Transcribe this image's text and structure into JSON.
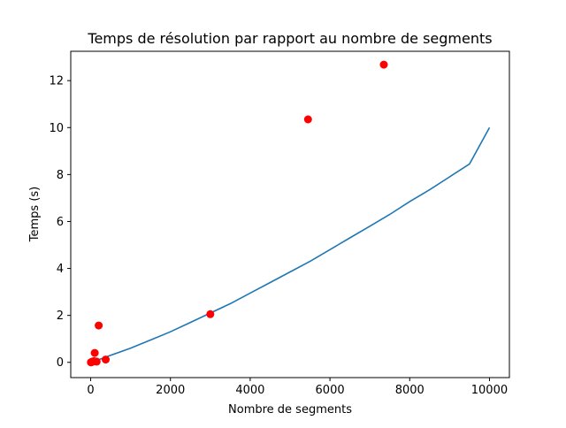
{
  "chart_data": {
    "type": "scatter",
    "title": "Temps de résolution par rapport au nombre de segments",
    "xlabel": "Nombre de segments",
    "ylabel": "Temps (s)",
    "xlim": [
      -500,
      10500
    ],
    "ylim": [
      -0.65,
      13.25
    ],
    "xticks": [
      0,
      2000,
      4000,
      6000,
      8000,
      10000
    ],
    "yticks": [
      0,
      2,
      4,
      6,
      8,
      10,
      12
    ],
    "grid": false,
    "legend": "none",
    "points": {
      "color": "#ff0000",
      "x": [
        5,
        10,
        20,
        30,
        50,
        80,
        100,
        150,
        200,
        375,
        3000,
        5450,
        7350
      ],
      "y": [
        0.0,
        0.0,
        0.01,
        0.02,
        0.03,
        0.05,
        0.4,
        0.03,
        1.57,
        0.12,
        2.05,
        10.35,
        12.68
      ]
    },
    "curve": {
      "color": "#1f77b4",
      "x": [
        0,
        250,
        500,
        1000,
        1500,
        2000,
        2500,
        3000,
        3500,
        4000,
        4500,
        5000,
        5500,
        6000,
        6500,
        7000,
        7500,
        8000,
        8500,
        9000,
        9500,
        10000
      ],
      "y": [
        0.0,
        0.14,
        0.3,
        0.6,
        0.95,
        1.3,
        1.7,
        2.1,
        2.5,
        2.95,
        3.4,
        3.85,
        4.3,
        4.8,
        5.3,
        5.8,
        6.3,
        6.85,
        7.35,
        7.9,
        8.45,
        10.0
      ]
    }
  }
}
